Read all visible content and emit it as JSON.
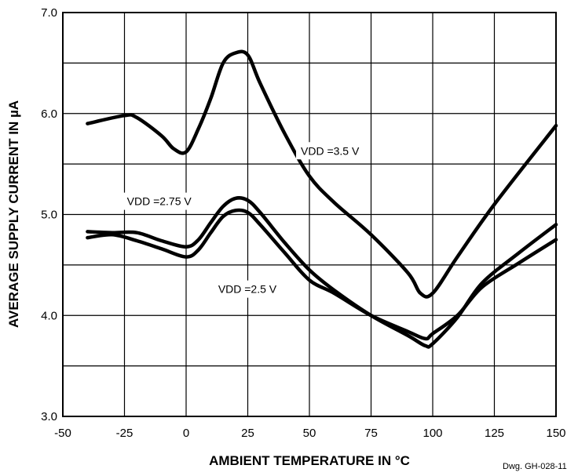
{
  "chart_data": {
    "type": "line",
    "title": "",
    "xlabel": "AMBIENT TEMPERATURE IN °C",
    "ylabel": "AVERAGE SUPPLY CURRENT IN µA",
    "xlim": [
      -50,
      150
    ],
    "ylim": [
      3.0,
      7.0
    ],
    "x_ticks": [
      "-50",
      "-25",
      "0",
      "25",
      "50",
      "75",
      "100",
      "125",
      "150"
    ],
    "y_ticks": [
      "3.0",
      "4.0",
      "5.0",
      "6.0",
      "7.0"
    ],
    "grid": true,
    "series": [
      {
        "name": "VDD =3.5 V",
        "x": [
          -40,
          -25,
          -20,
          -10,
          -5,
          0,
          5,
          10,
          15,
          20,
          25,
          30,
          40,
          50,
          60,
          75,
          90,
          95,
          100,
          110,
          125,
          150
        ],
        "y": [
          5.9,
          5.98,
          5.96,
          5.78,
          5.65,
          5.62,
          5.85,
          6.15,
          6.5,
          6.6,
          6.58,
          6.3,
          5.8,
          5.38,
          5.12,
          4.8,
          4.42,
          4.22,
          4.22,
          4.58,
          5.1,
          5.88
        ]
      },
      {
        "name": "VDD =2.75 V",
        "x": [
          -40,
          -30,
          -20,
          -10,
          0,
          5,
          10,
          15,
          20,
          25,
          30,
          40,
          50,
          60,
          75,
          90,
          97,
          100,
          110,
          120,
          135,
          150
        ],
        "y": [
          4.83,
          4.82,
          4.82,
          4.74,
          4.68,
          4.75,
          4.92,
          5.08,
          5.16,
          5.14,
          5.02,
          4.72,
          4.45,
          4.25,
          4.0,
          3.8,
          3.7,
          3.72,
          3.98,
          4.32,
          4.62,
          4.9
        ]
      },
      {
        "name": "VDD =2.5 V",
        "x": [
          -40,
          -30,
          -20,
          -10,
          0,
          5,
          10,
          15,
          20,
          25,
          30,
          40,
          50,
          60,
          75,
          90,
          97,
          100,
          110,
          120,
          135,
          150
        ],
        "y": [
          4.77,
          4.8,
          4.74,
          4.66,
          4.58,
          4.65,
          4.82,
          4.98,
          5.04,
          5.02,
          4.9,
          4.62,
          4.35,
          4.22,
          4.0,
          3.84,
          3.77,
          3.82,
          4.0,
          4.28,
          4.52,
          4.75
        ]
      }
    ],
    "annotations": [
      "Dwg. GH-028-11"
    ]
  },
  "colors": {
    "line": "#000000",
    "background": "#ffffff"
  }
}
